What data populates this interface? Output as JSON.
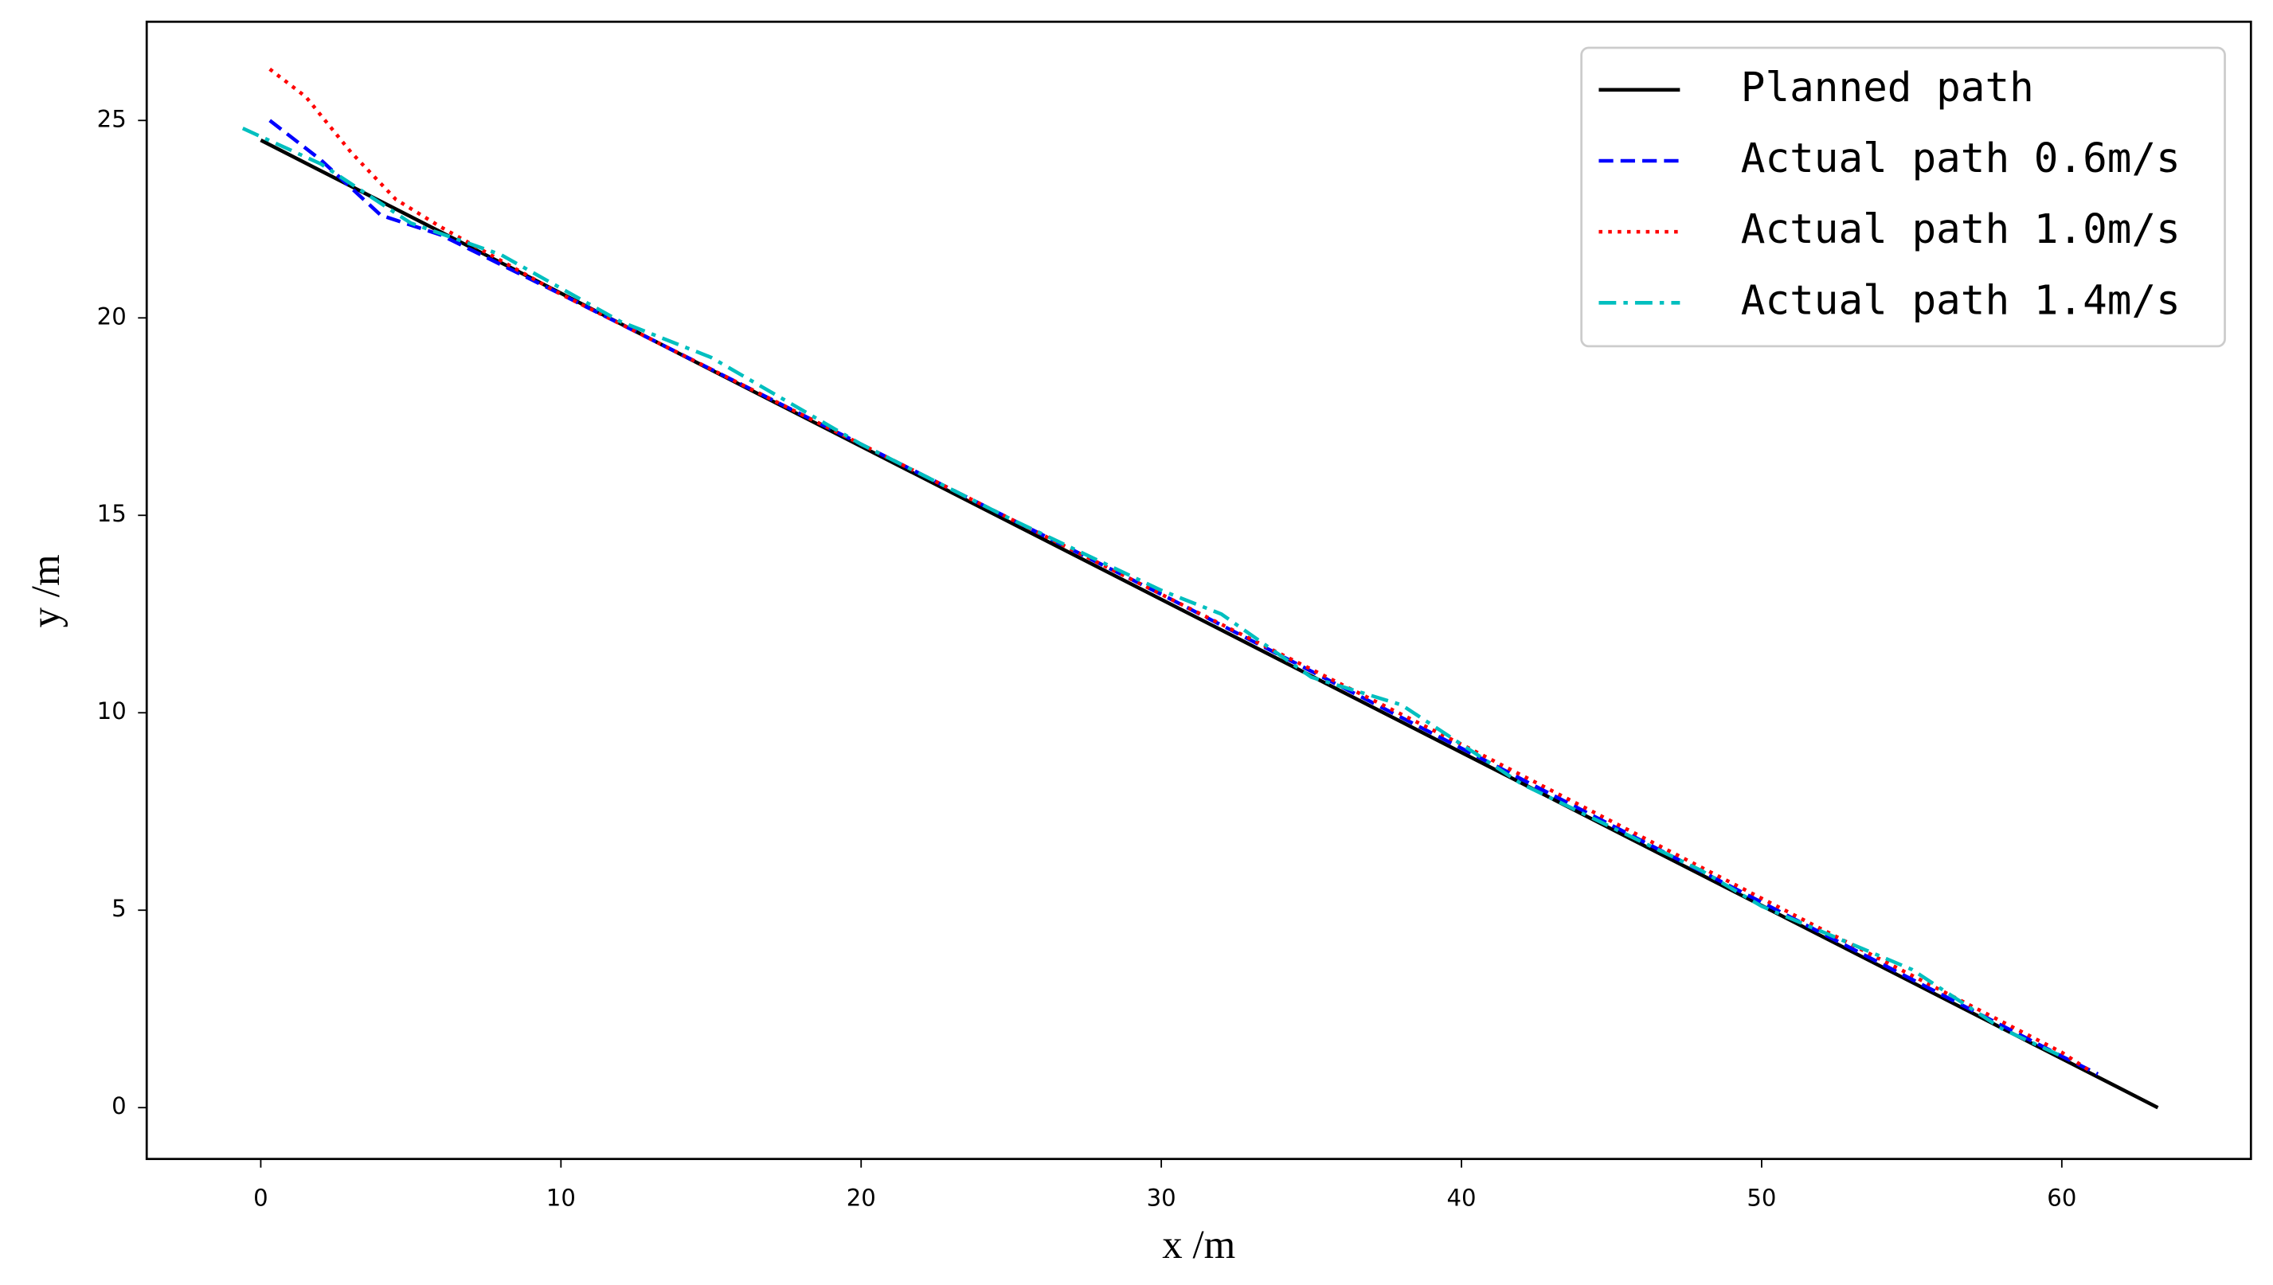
{
  "chart_data": {
    "type": "line",
    "xlabel": "x /m",
    "ylabel": "y /m",
    "xlim": [
      -3.8,
      66.3
    ],
    "ylim": [
      -1.3,
      27.5
    ],
    "xticks": [
      0,
      10,
      20,
      30,
      40,
      50,
      60
    ],
    "yticks": [
      0,
      5,
      10,
      15,
      20,
      25
    ],
    "legend": "upper right",
    "series": [
      {
        "name": "Planned path",
        "color": "#000000",
        "linestyle": "solid",
        "x": [
          0,
          63.2
        ],
        "values": [
          24.5,
          0
        ]
      },
      {
        "name": "Actual path 0.6m/s",
        "color": "#0000ff",
        "linestyle": "dashed",
        "x": [
          0.3,
          2,
          4,
          6,
          10,
          20,
          30,
          40,
          50,
          60,
          61.2
        ],
        "values": [
          25.0,
          24.0,
          22.6,
          22.1,
          20.6,
          16.8,
          13.0,
          9.1,
          5.2,
          1.3,
          0.85
        ]
      },
      {
        "name": "Actual path 1.0m/s",
        "color": "#ff0000",
        "linestyle": "dotted",
        "x": [
          0.3,
          1.5,
          3,
          4.5,
          6,
          10,
          20,
          30,
          40,
          50,
          60,
          61
        ],
        "values": [
          26.3,
          25.6,
          24.2,
          23.0,
          22.3,
          20.6,
          16.8,
          13.0,
          9.2,
          5.3,
          1.4,
          0.9
        ]
      },
      {
        "name": "Actual path 1.4m/s",
        "color": "#00bfbf",
        "linestyle": "dashdot",
        "x": [
          -0.6,
          2,
          5,
          8,
          12,
          15,
          20,
          25,
          30,
          32,
          35,
          38,
          42,
          45,
          48,
          50,
          55,
          58,
          60
        ],
        "values": [
          24.8,
          23.9,
          22.4,
          21.6,
          19.9,
          19.0,
          16.8,
          14.9,
          13.1,
          12.5,
          10.9,
          10.2,
          8.2,
          7.1,
          6.0,
          5.1,
          3.5,
          2.0,
          1.3
        ]
      }
    ]
  }
}
